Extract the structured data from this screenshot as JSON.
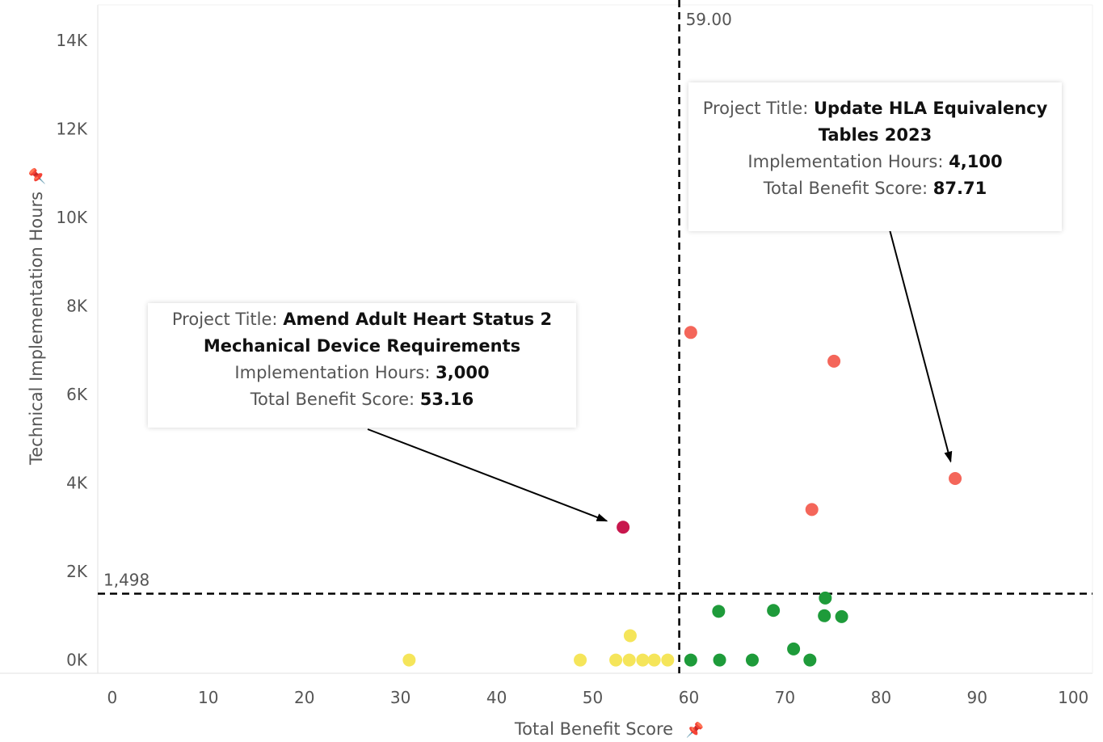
{
  "chart_data": {
    "type": "scatter",
    "xlabel": "Total Benefit Score",
    "ylabel": "Technical Implementation Hours",
    "xlim": [
      -1.5,
      102
    ],
    "ylim": [
      -300,
      14800
    ],
    "x_ticks": [
      0,
      10,
      20,
      30,
      40,
      50,
      60,
      70,
      80,
      90,
      100
    ],
    "x_tick_labels": [
      "0",
      "10",
      "20",
      "30",
      "40",
      "50",
      "60",
      "70",
      "80",
      "90",
      "100"
    ],
    "y_ticks": [
      0,
      2000,
      4000,
      6000,
      8000,
      10000,
      12000,
      14000
    ],
    "y_tick_labels": [
      "0K",
      "2K",
      "4K",
      "6K",
      "8K",
      "10K",
      "12K",
      "14K"
    ],
    "reference_lines": {
      "x": {
        "value": 59,
        "label": "59.00"
      },
      "y": {
        "value": 1498,
        "label": "1,498"
      }
    },
    "colors": {
      "high_effort_high_benefit": "#f4665a",
      "low_effort_high_benefit": "#1e9b3a",
      "low_effort_low_benefit": "#f5e55a",
      "high_effort_low_benefit": "#c8174d",
      "reference_line": "#000000"
    },
    "points": [
      {
        "x": 53.16,
        "y": 3000,
        "color": "#c8174d"
      },
      {
        "x": 60.2,
        "y": 7400,
        "color": "#f4665a"
      },
      {
        "x": 75.1,
        "y": 6750,
        "color": "#f4665a"
      },
      {
        "x": 87.71,
        "y": 4100,
        "color": "#f4665a"
      },
      {
        "x": 72.8,
        "y": 3400,
        "color": "#f4665a"
      },
      {
        "x": 74.2,
        "y": 1400,
        "color": "#1e9b3a"
      },
      {
        "x": 63.1,
        "y": 1100,
        "color": "#1e9b3a"
      },
      {
        "x": 68.8,
        "y": 1120,
        "color": "#1e9b3a"
      },
      {
        "x": 74.1,
        "y": 1000,
        "color": "#1e9b3a"
      },
      {
        "x": 75.9,
        "y": 980,
        "color": "#1e9b3a"
      },
      {
        "x": 70.9,
        "y": 250,
        "color": "#1e9b3a"
      },
      {
        "x": 60.2,
        "y": 0,
        "color": "#1e9b3a"
      },
      {
        "x": 63.2,
        "y": 0,
        "color": "#1e9b3a"
      },
      {
        "x": 66.6,
        "y": 0,
        "color": "#1e9b3a"
      },
      {
        "x": 72.6,
        "y": 0,
        "color": "#1e9b3a"
      },
      {
        "x": 53.9,
        "y": 550,
        "color": "#f5e55a"
      },
      {
        "x": 30.9,
        "y": 0,
        "color": "#f5e55a"
      },
      {
        "x": 48.7,
        "y": 0,
        "color": "#f5e55a"
      },
      {
        "x": 52.4,
        "y": 0,
        "color": "#f5e55a"
      },
      {
        "x": 53.8,
        "y": 0,
        "color": "#f5e55a"
      },
      {
        "x": 55.2,
        "y": 0,
        "color": "#f5e55a"
      },
      {
        "x": 56.4,
        "y": 0,
        "color": "#f5e55a"
      },
      {
        "x": 57.8,
        "y": 0,
        "color": "#f5e55a"
      }
    ],
    "annotations": [
      {
        "title_label": "Project Title:",
        "title_line1": "Amend Adult Heart Status 2",
        "title_line2": "Mechanical Device Requirements",
        "hours_label": "Implementation Hours:",
        "hours_value": "3,000",
        "score_label": "Total Benefit Score:",
        "score_value": "53.16",
        "target": {
          "x": 53.16,
          "y": 3000
        }
      },
      {
        "title_label": "Project Title:",
        "title_line1": "Update HLA Equivalency",
        "title_line2": "Tables 2023",
        "hours_label": "Implementation Hours:",
        "hours_value": "4,100",
        "score_label": "Total Benefit Score:",
        "score_value": "87.71",
        "target": {
          "x": 87.71,
          "y": 4100
        }
      }
    ]
  },
  "icons": {
    "pin": "pin-icon"
  }
}
